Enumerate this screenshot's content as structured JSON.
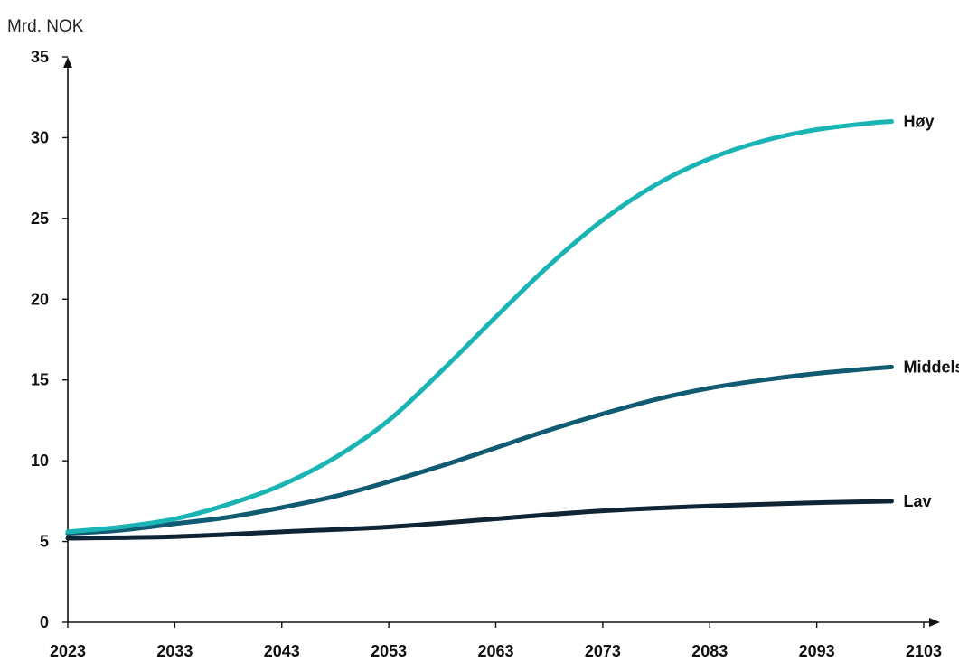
{
  "chart_data": {
    "type": "line",
    "title": "",
    "xlabel": "",
    "ylabel": "Mrd. NOK",
    "xlim": [
      2023,
      2103
    ],
    "ylim": [
      0,
      35
    ],
    "x_ticks": [
      2023,
      2033,
      2043,
      2053,
      2063,
      2073,
      2083,
      2093,
      2103
    ],
    "y_ticks": [
      0,
      5,
      10,
      15,
      20,
      25,
      30,
      35
    ],
    "grid": false,
    "legend": "none",
    "series": [
      {
        "name": "Høy",
        "color": "#1ab4b4",
        "x": [
          2023,
          2028,
          2033,
          2038,
          2043,
          2048,
          2053,
          2058,
          2063,
          2068,
          2073,
          2078,
          2083,
          2088,
          2093,
          2098,
          2100
        ],
        "y": [
          5.6,
          5.9,
          6.4,
          7.3,
          8.5,
          10.2,
          12.5,
          15.6,
          18.9,
          22.1,
          24.9,
          27.1,
          28.7,
          29.8,
          30.5,
          30.9,
          31.0
        ]
      },
      {
        "name": "Middels",
        "color": "#105a72",
        "x": [
          2023,
          2028,
          2033,
          2038,
          2043,
          2048,
          2053,
          2058,
          2063,
          2068,
          2073,
          2078,
          2083,
          2088,
          2093,
          2098,
          2100
        ],
        "y": [
          5.5,
          5.7,
          6.1,
          6.5,
          7.1,
          7.8,
          8.7,
          9.7,
          10.8,
          11.9,
          12.9,
          13.8,
          14.5,
          15.0,
          15.4,
          15.7,
          15.8
        ]
      },
      {
        "name": "Lav",
        "color": "#0f2536",
        "x": [
          2023,
          2033,
          2043,
          2053,
          2063,
          2073,
          2083,
          2093,
          2100
        ],
        "y": [
          5.2,
          5.3,
          5.6,
          5.9,
          6.4,
          6.9,
          7.2,
          7.4,
          7.5
        ]
      }
    ]
  }
}
